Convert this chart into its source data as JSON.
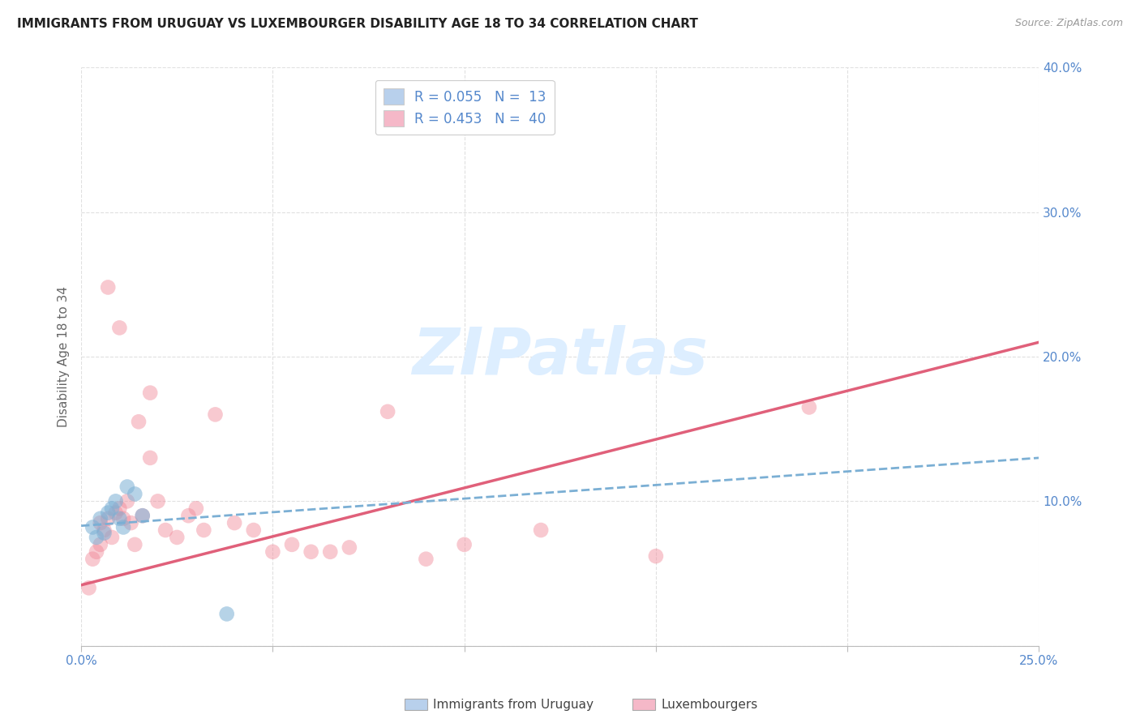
{
  "title": "IMMIGRANTS FROM URUGUAY VS LUXEMBOURGER DISABILITY AGE 18 TO 34 CORRELATION CHART",
  "source": "Source: ZipAtlas.com",
  "ylabel": "Disability Age 18 to 34",
  "xlim": [
    0.0,
    0.25
  ],
  "ylim": [
    0.0,
    0.4
  ],
  "legend_entries": [
    {
      "label": "R = 0.055   N =  13",
      "color": "#b8d0ec"
    },
    {
      "label": "R = 0.453   N =  40",
      "color": "#f5b8c8"
    }
  ],
  "watermark": "ZIPatlas",
  "blue_scatter_x": [
    0.003,
    0.004,
    0.005,
    0.006,
    0.007,
    0.008,
    0.009,
    0.01,
    0.011,
    0.012,
    0.014,
    0.016,
    0.038
  ],
  "blue_scatter_y": [
    0.082,
    0.075,
    0.088,
    0.078,
    0.092,
    0.095,
    0.1,
    0.088,
    0.082,
    0.11,
    0.105,
    0.09,
    0.022
  ],
  "pink_scatter_x": [
    0.002,
    0.003,
    0.004,
    0.005,
    0.005,
    0.006,
    0.007,
    0.008,
    0.009,
    0.01,
    0.011,
    0.012,
    0.013,
    0.014,
    0.015,
    0.016,
    0.018,
    0.02,
    0.022,
    0.025,
    0.028,
    0.032,
    0.035,
    0.04,
    0.045,
    0.05,
    0.055,
    0.06,
    0.065,
    0.07,
    0.08,
    0.09,
    0.1,
    0.12,
    0.15,
    0.19,
    0.007,
    0.01,
    0.018,
    0.03
  ],
  "pink_scatter_y": [
    0.04,
    0.06,
    0.065,
    0.085,
    0.07,
    0.08,
    0.088,
    0.075,
    0.092,
    0.095,
    0.088,
    0.1,
    0.085,
    0.07,
    0.155,
    0.09,
    0.13,
    0.1,
    0.08,
    0.075,
    0.09,
    0.08,
    0.16,
    0.085,
    0.08,
    0.065,
    0.07,
    0.065,
    0.065,
    0.068,
    0.162,
    0.06,
    0.07,
    0.08,
    0.062,
    0.165,
    0.248,
    0.22,
    0.175,
    0.095
  ],
  "blue_line_x": [
    0.0,
    0.25
  ],
  "blue_line_y": [
    0.083,
    0.13
  ],
  "pink_line_x": [
    0.0,
    0.25
  ],
  "pink_line_y": [
    0.042,
    0.21
  ],
  "blue_color": "#7bafd4",
  "pink_color": "#f08898",
  "blue_line_color": "#7bafd4",
  "pink_line_color": "#e0607a",
  "grid_color": "#e0e0e0",
  "axis_color": "#bbbbbb",
  "tick_label_color": "#5588cc",
  "bottom_legend_text_color": "#444444",
  "background_color": "#ffffff",
  "title_fontsize": 11,
  "source_fontsize": 9,
  "watermark_color": "#ddeeff",
  "watermark_fontsize": 58,
  "scatter_size": 180,
  "scatter_alpha_blue": 0.55,
  "scatter_alpha_pink": 0.45
}
